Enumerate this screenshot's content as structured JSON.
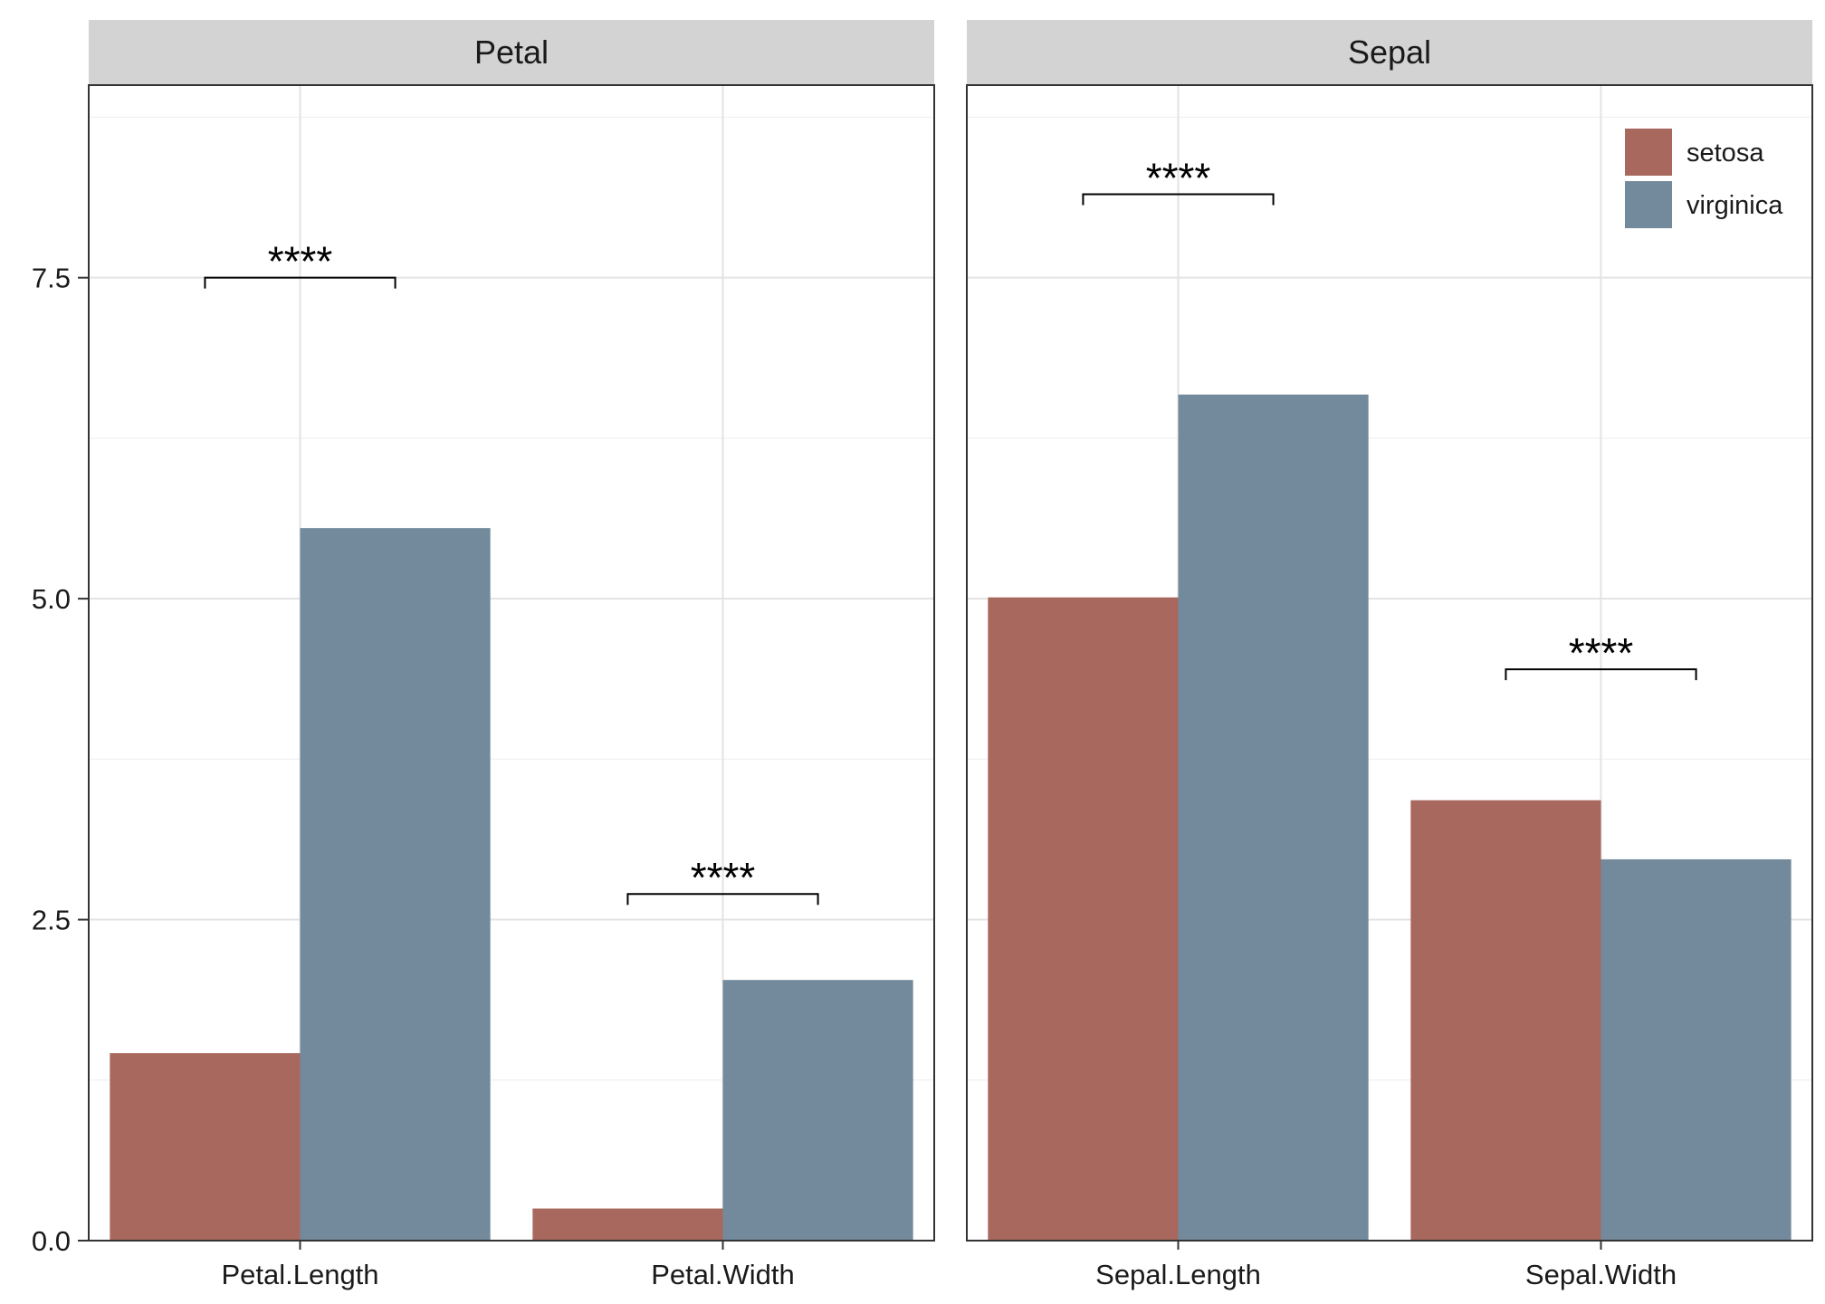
{
  "chart_data": {
    "type": "bar",
    "ylim": [
      0,
      9
    ],
    "y_ticks": [
      0.0,
      2.5,
      5.0,
      7.5
    ],
    "y_tick_labels": [
      "0.0",
      "2.5",
      "5.0",
      "7.5"
    ],
    "grid": true,
    "legend": {
      "placement": "top-right",
      "entries": [
        {
          "name": "setosa",
          "color": "#a8685e"
        },
        {
          "name": "virginica",
          "color": "#738a9c"
        }
      ]
    },
    "panels": [
      {
        "strip": "Petal",
        "categories": [
          "Petal.Length",
          "Petal.Width"
        ],
        "series": [
          {
            "name": "setosa",
            "values": [
              1.46,
              0.25
            ]
          },
          {
            "name": "virginica",
            "values": [
              5.55,
              2.03
            ]
          }
        ],
        "significance": [
          {
            "category": "Petal.Length",
            "label": "****",
            "y": 7.5
          },
          {
            "category": "Petal.Width",
            "label": "****",
            "y": 2.7
          }
        ]
      },
      {
        "strip": "Sepal",
        "categories": [
          "Sepal.Length",
          "Sepal.Width"
        ],
        "series": [
          {
            "name": "setosa",
            "values": [
              5.01,
              3.43
            ]
          },
          {
            "name": "virginica",
            "values": [
              6.59,
              2.97
            ]
          }
        ],
        "significance": [
          {
            "category": "Sepal.Length",
            "label": "****",
            "y": 8.15
          },
          {
            "category": "Sepal.Width",
            "label": "****",
            "y": 4.45
          }
        ]
      }
    ]
  }
}
